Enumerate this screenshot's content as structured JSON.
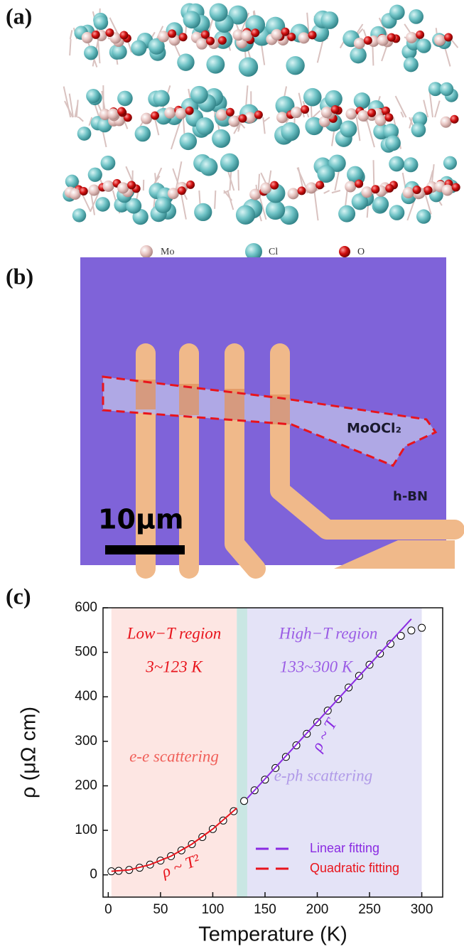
{
  "panels": {
    "a": {
      "label": "(a)",
      "legend": [
        "Mo",
        "Cl",
        "O"
      ]
    },
    "b": {
      "label": "(b)",
      "sample": "MoOCl₂",
      "substrate": "h-BN",
      "scale_bar": "10μm"
    },
    "c": {
      "label": "(c)"
    }
  },
  "chart_data": {
    "type": "scatter",
    "x_label": "Temperature (K)",
    "y_label": "ρ (μΩ cm)",
    "x": [
      3,
      10,
      20,
      30,
      40,
      50,
      60,
      70,
      80,
      90,
      100,
      110,
      120,
      130,
      140,
      150,
      160,
      170,
      180,
      190,
      200,
      210,
      220,
      230,
      240,
      250,
      260,
      270,
      280,
      290,
      300
    ],
    "values": [
      8,
      9,
      11,
      16,
      23,
      32,
      42,
      55,
      69,
      85,
      103,
      122,
      143,
      166,
      190,
      214,
      240,
      265,
      291,
      317,
      343,
      369,
      395,
      421,
      447,
      472,
      497,
      519,
      537,
      549,
      555
    ],
    "marker_color": "#000000",
    "series": [
      {
        "name": "Linear fitting",
        "color": "#8a2be2",
        "x": [
          133,
          290
        ],
        "values": [
          172,
          575
        ]
      },
      {
        "name": "Quadratic fitting",
        "color": "#e8141c",
        "x": [
          3,
          20,
          40,
          60,
          80,
          100,
          123
        ],
        "values": [
          8,
          11,
          23,
          42,
          69,
          103,
          150
        ]
      }
    ],
    "regions": [
      {
        "from": 3,
        "to": 123,
        "color": "#fde6e3"
      },
      {
        "from": 123,
        "to": 133,
        "color": "#c9e6e3"
      },
      {
        "from": 133,
        "to": 300,
        "color": "#e4e3f7"
      }
    ],
    "annotations": [
      "Low−T region",
      "3~123 K",
      "High−T region",
      "133~300 K",
      "e-e scattering",
      "e-ph scattering",
      "ρ ~ T",
      "ρ ~ T²"
    ],
    "xlim": [
      -5,
      320
    ],
    "ylim": [
      -50,
      600
    ],
    "xticks": [
      0,
      50,
      100,
      150,
      200,
      250,
      300
    ],
    "yticks": [
      0,
      100,
      200,
      300,
      400,
      500,
      600
    ],
    "legend": "lower right"
  }
}
